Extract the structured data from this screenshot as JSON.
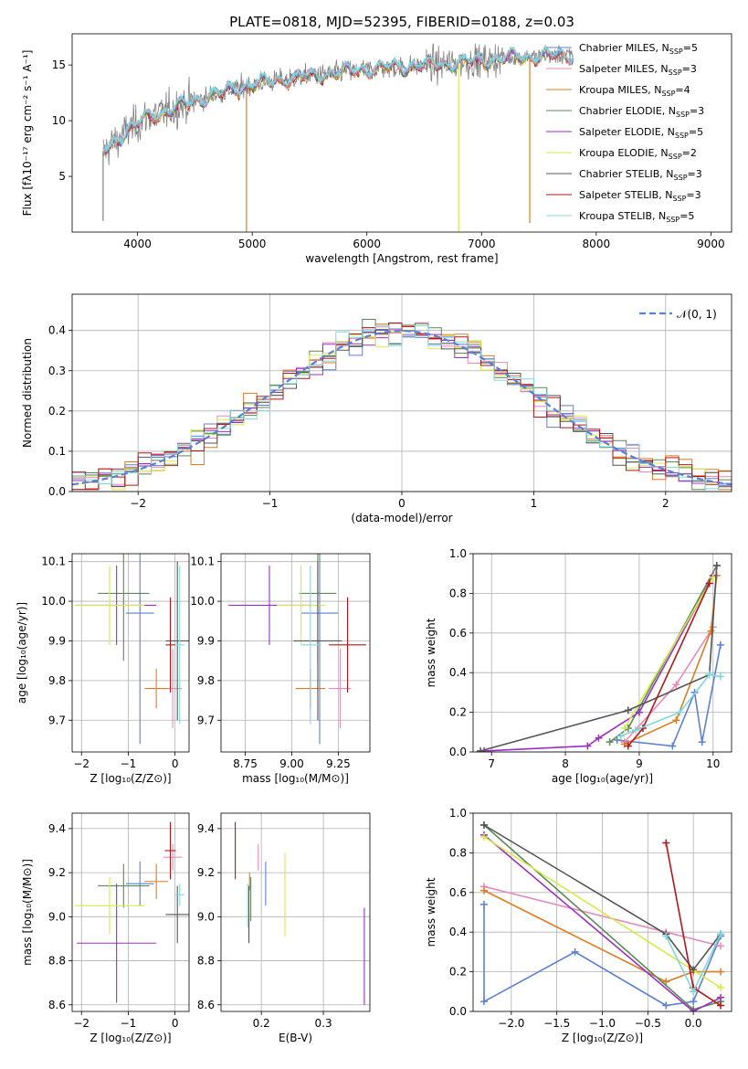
{
  "title": "PLATE=0818, MJD=52395, FIBERID=0188, z=0.03",
  "colors": {
    "Chabrier MILES": "#5b7fd6",
    "Salpeter MILES": "#e889b7",
    "Kroupa MILES": "#e07b24",
    "Chabrier ELODIE": "#5a8a56",
    "Salpeter ELODIE": "#9a2fc1",
    "Kroupa ELODIE": "#d8ea4a",
    "Chabrier STELIB": "#555555",
    "Salpeter STELIB": "#b3161a",
    "Kroupa STELIB": "#7fd7dd"
  },
  "chart_data": [
    {
      "type": "line",
      "name": "spectrum",
      "xlabel": "wavelength [Angstrom, rest frame]",
      "ylabel": "Flux [fλ10⁻¹⁷ erg cm⁻² s⁻¹ A⁻¹]",
      "xlim": [
        3430,
        9180
      ],
      "ylim": [
        0,
        17.8
      ],
      "xticks": [
        4000,
        5000,
        6000,
        7000,
        8000,
        9000
      ],
      "yticks": [
        5,
        10,
        15
      ],
      "legend_position": "top-right",
      "legend": [
        {
          "text": "Chabrier MILES, N",
          "sub": "SSP",
          "suffix": "=5"
        },
        {
          "text": "Salpeter MILES, N",
          "sub": "SSP",
          "suffix": "=3"
        },
        {
          "text": "Kroupa MILES, N",
          "sub": "SSP",
          "suffix": "=4"
        },
        {
          "text": "Chabrier ELODIE, N",
          "sub": "SSP",
          "suffix": "=3"
        },
        {
          "text": "Salpeter ELODIE, N",
          "sub": "SSP",
          "suffix": "=5"
        },
        {
          "text": "Kroupa ELODIE, N",
          "sub": "SSP",
          "suffix": "=2"
        },
        {
          "text": "Chabrier STELIB, N",
          "sub": "SSP",
          "suffix": "=3"
        },
        {
          "text": "Salpeter STELIB, N",
          "sub": "SSP",
          "suffix": "=3"
        },
        {
          "text": "Kroupa STELIB, N",
          "sub": "SSP",
          "suffix": "=5"
        }
      ],
      "continuum": [
        [
          3700,
          7.2
        ],
        [
          3900,
          9.0
        ],
        [
          4100,
          10.4
        ],
        [
          4300,
          11.0
        ],
        [
          4500,
          11.8
        ],
        [
          4700,
          12.4
        ],
        [
          4900,
          13.0
        ],
        [
          5200,
          13.6
        ],
        [
          5500,
          14.0
        ],
        [
          5800,
          14.4
        ],
        [
          6100,
          14.7
        ],
        [
          6400,
          14.9
        ],
        [
          6700,
          15.1
        ],
        [
          7000,
          15.4
        ],
        [
          7300,
          15.7
        ],
        [
          7600,
          15.8
        ],
        [
          7800,
          15.9
        ]
      ],
      "spikes": [
        [
          4950,
          0
        ],
        [
          6800,
          0
        ],
        [
          7420,
          0.8
        ],
        [
          3700,
          1.0
        ]
      ]
    },
    {
      "type": "histogram",
      "name": "residuals",
      "xlabel": "(data-model)/error",
      "ylabel": "Normed distribution",
      "xlim": [
        -2.5,
        2.5
      ],
      "ylim": [
        0,
        0.49
      ],
      "xticks": [
        -2,
        -1,
        0,
        1,
        2
      ],
      "yticks": [
        0.0,
        0.1,
        0.2,
        0.3,
        0.4
      ],
      "bin_width": 0.1,
      "legend": "𝒩(0, 1)",
      "legend_position": "top-right",
      "reference_curve": "normal(0,1)"
    },
    {
      "type": "scatter",
      "name": "age-vs-Z",
      "xlabel": "Z [log₁₀(Z/Z⊙)]",
      "ylabel": "age  [log₁₀(age/yr)]",
      "xlim": [
        -2.2,
        0.3
      ],
      "ylim": [
        9.62,
        10.12
      ],
      "xticks": [
        -2,
        -1,
        0
      ],
      "yticks": [
        9.7,
        9.8,
        9.9,
        10.0,
        10.1
      ],
      "points": [
        {
          "series": "Chabrier MILES",
          "x": -0.75,
          "y": 9.97,
          "xerr": 0.3,
          "yerr": 0.33
        },
        {
          "series": "Salpeter MILES",
          "x": -0.05,
          "y": 9.78,
          "xerr": 0.2,
          "yerr": 0.1
        },
        {
          "series": "Kroupa MILES",
          "x": -0.4,
          "y": 9.78,
          "xerr": 0.25,
          "yerr": 0.05
        },
        {
          "series": "Chabrier ELODIE",
          "x": -1.1,
          "y": 10.02,
          "xerr": 0.55,
          "yerr": 0.17
        },
        {
          "series": "Salpeter ELODIE",
          "x": -1.25,
          "y": 9.99,
          "xerr": 0.85,
          "yerr": 0.1
        },
        {
          "series": "Kroupa ELODIE",
          "x": -1.4,
          "y": 9.99,
          "xerr": 0.75,
          "yerr": 0.1
        },
        {
          "series": "Chabrier STELIB",
          "x": 0.05,
          "y": 9.9,
          "xerr": 0.25,
          "yerr": 0.2
        },
        {
          "series": "Salpeter STELIB",
          "x": -0.1,
          "y": 9.89,
          "xerr": 0.1,
          "yerr": 0.12
        },
        {
          "series": "Kroupa STELIB",
          "x": 0.1,
          "y": 9.89,
          "xerr": 0.1,
          "yerr": 0.2
        }
      ]
    },
    {
      "type": "scatter",
      "name": "age-vs-mass",
      "xlabel": "mass [log₁₀(M/M⊙)]",
      "ylabel": "",
      "xlim": [
        8.62,
        9.42
      ],
      "ylim": [
        9.62,
        10.12
      ],
      "xticks": [
        8.75,
        9.0,
        9.25
      ],
      "yticks": [
        9.7,
        9.8,
        9.9,
        10.0,
        10.1
      ],
      "points": [
        {
          "series": "Chabrier MILES",
          "x": 9.15,
          "y": 9.97,
          "xerr": 0.1,
          "yerr": 0.33
        },
        {
          "series": "Salpeter MILES",
          "x": 9.26,
          "y": 9.78,
          "xerr": 0.06,
          "yerr": 0.1
        },
        {
          "series": "Kroupa MILES",
          "x": 9.1,
          "y": 9.78,
          "xerr": 0.08,
          "yerr": 0.05
        },
        {
          "series": "Chabrier ELODIE",
          "x": 9.14,
          "y": 10.02,
          "xerr": 0.1,
          "yerr": 0.17
        },
        {
          "series": "Salpeter ELODIE",
          "x": 8.88,
          "y": 9.99,
          "xerr": 0.22,
          "yerr": 0.1
        },
        {
          "series": "Kroupa ELODIE",
          "x": 9.05,
          "y": 9.99,
          "xerr": 0.13,
          "yerr": 0.1
        },
        {
          "series": "Chabrier STELIB",
          "x": 9.14,
          "y": 9.9,
          "xerr": 0.13,
          "yerr": 0.2
        },
        {
          "series": "Salpeter STELIB",
          "x": 9.3,
          "y": 9.89,
          "xerr": 0.1,
          "yerr": 0.12
        },
        {
          "series": "Kroupa STELIB",
          "x": 9.1,
          "y": 9.89,
          "xerr": 0.05,
          "yerr": 0.2
        }
      ]
    },
    {
      "type": "line",
      "name": "weight-vs-age",
      "xlabel": "age  [log₁₀(age/yr)]",
      "ylabel": "mass weight",
      "xlim": [
        6.75,
        10.25
      ],
      "ylim": [
        0,
        1.0
      ],
      "xticks": [
        7,
        8,
        9,
        10
      ],
      "yticks": [
        0.0,
        0.2,
        0.4,
        0.6,
        0.8,
        1.0
      ],
      "series": [
        {
          "name": "Chabrier MILES",
          "points": [
            [
              8.7,
              0.06
            ],
            [
              9.45,
              0.03
            ],
            [
              9.75,
              0.3
            ],
            [
              9.85,
              0.05
            ],
            [
              10.1,
              0.54
            ]
          ]
        },
        {
          "name": "Salpeter MILES",
          "points": [
            [
              8.8,
              0.05
            ],
            [
              9.5,
              0.34
            ],
            [
              10.0,
              0.63
            ]
          ]
        },
        {
          "name": "Kroupa MILES",
          "points": [
            [
              8.8,
              0.04
            ],
            [
              9.5,
              0.16
            ],
            [
              9.97,
              0.61
            ],
            [
              10.05,
              0.89
            ]
          ]
        },
        {
          "name": "Chabrier ELODIE",
          "points": [
            [
              8.6,
              0.05
            ],
            [
              8.85,
              0.12
            ],
            [
              10.05,
              0.94
            ]
          ]
        },
        {
          "name": "Salpeter ELODIE",
          "points": [
            [
              6.9,
              0.005
            ],
            [
              8.3,
              0.03
            ],
            [
              8.45,
              0.07
            ],
            [
              9.0,
              0.2
            ],
            [
              10.0,
              0.89
            ]
          ]
        },
        {
          "name": "Kroupa ELODIE",
          "points": [
            [
              8.8,
              0.12
            ],
            [
              10.0,
              0.88
            ]
          ]
        },
        {
          "name": "Chabrier STELIB",
          "points": [
            [
              6.85,
              0.005
            ],
            [
              8.85,
              0.21
            ],
            [
              9.95,
              0.39
            ],
            [
              10.05,
              0.94
            ]
          ]
        },
        {
          "name": "Salpeter STELIB",
          "points": [
            [
              8.85,
              0.03
            ],
            [
              9.05,
              0.12
            ],
            [
              9.95,
              0.85
            ]
          ]
        },
        {
          "name": "Kroupa STELIB",
          "points": [
            [
              8.75,
              0.08
            ],
            [
              8.95,
              0.11
            ],
            [
              9.55,
              0.2
            ],
            [
              9.95,
              0.39
            ],
            [
              10.1,
              0.38
            ]
          ]
        }
      ]
    },
    {
      "type": "scatter",
      "name": "mass-vs-Z",
      "xlabel": "Z [log₁₀(Z/Z⊙)]",
      "ylabel": "mass [log₁₀(M/M⊙)]",
      "xlim": [
        -2.2,
        0.3
      ],
      "ylim": [
        8.57,
        9.47
      ],
      "xticks": [
        -2,
        -1,
        0
      ],
      "yticks": [
        8.6,
        8.8,
        9.0,
        9.2,
        9.4
      ],
      "points": [
        {
          "series": "Chabrier MILES",
          "x": -0.75,
          "y": 9.15,
          "xerr": 0.3,
          "yerr": 0.1
        },
        {
          "series": "Salpeter MILES",
          "x": -0.05,
          "y": 9.27,
          "xerr": 0.2,
          "yerr": 0.06
        },
        {
          "series": "Kroupa MILES",
          "x": -0.4,
          "y": 9.16,
          "xerr": 0.25,
          "yerr": 0.08
        },
        {
          "series": "Chabrier ELODIE",
          "x": -1.1,
          "y": 9.14,
          "xerr": 0.55,
          "yerr": 0.1
        },
        {
          "series": "Salpeter ELODIE",
          "x": -1.25,
          "y": 8.88,
          "xerr": 0.85,
          "yerr": 0.27
        },
        {
          "series": "Kroupa ELODIE",
          "x": -1.4,
          "y": 9.05,
          "xerr": 0.75,
          "yerr": 0.13
        },
        {
          "series": "Chabrier STELIB",
          "x": 0.05,
          "y": 9.01,
          "xerr": 0.25,
          "yerr": 0.13
        },
        {
          "series": "Salpeter STELIB",
          "x": -0.1,
          "y": 9.3,
          "xerr": 0.12,
          "yerr": 0.13
        },
        {
          "series": "Kroupa STELIB",
          "x": 0.1,
          "y": 9.1,
          "xerr": 0.1,
          "yerr": 0.05
        }
      ]
    },
    {
      "type": "scatter",
      "name": "mass-vs-EBV",
      "xlabel": "E(B-V)",
      "ylabel": "",
      "xlim": [
        0.135,
        0.375
      ],
      "ylim": [
        8.57,
        9.47
      ],
      "xticks": [
        0.2,
        0.3
      ],
      "yticks": [
        8.6,
        8.8,
        9.0,
        9.2,
        9.4
      ],
      "points": [
        {
          "series": "Chabrier MILES",
          "x": 0.207,
          "y": 9.15,
          "yerr": 0.1
        },
        {
          "series": "Salpeter MILES",
          "x": 0.195,
          "y": 9.27,
          "yerr": 0.06
        },
        {
          "series": "Kroupa MILES",
          "x": 0.181,
          "y": 9.16,
          "yerr": 0.04
        },
        {
          "series": "Chabrier ELODIE",
          "x": 0.183,
          "y": 9.08,
          "yerr": 0.1
        },
        {
          "series": "Salpeter ELODIE",
          "x": 0.366,
          "y": 8.82,
          "yerr": 0.22
        },
        {
          "series": "Kroupa ELODIE",
          "x": 0.238,
          "y": 9.1,
          "yerr": 0.19
        },
        {
          "series": "Chabrier STELIB",
          "x": 0.18,
          "y": 9.01,
          "yerr": 0.13
        },
        {
          "series": "Salpeter STELIB",
          "x": 0.158,
          "y": 9.3,
          "yerr": 0.13
        },
        {
          "series": "Kroupa STELIB",
          "x": 0.178,
          "y": 9.05,
          "yerr": 0.1
        }
      ]
    },
    {
      "type": "line",
      "name": "weight-vs-Z",
      "xlabel": "Z [log₁₀(Z/Z⊙)]",
      "ylabel": "mass weight",
      "xlim": [
        -2.42,
        0.42
      ],
      "ylim": [
        0,
        1.0
      ],
      "xticks": [
        -2.0,
        -1.5,
        -1.0,
        -0.5,
        0.0
      ],
      "yticks": [
        0.0,
        0.2,
        0.4,
        0.6,
        0.8,
        1.0
      ],
      "series": [
        {
          "name": "Chabrier MILES",
          "points": [
            [
              -2.3,
              0.54
            ],
            [
              -2.3,
              0.05
            ],
            [
              -1.3,
              0.3
            ],
            [
              -0.3,
              0.03
            ],
            [
              0.0,
              0.05
            ],
            [
              0.3,
              0.38
            ]
          ]
        },
        {
          "name": "Salpeter MILES",
          "points": [
            [
              -2.3,
              0.63
            ],
            [
              -0.3,
              0.4
            ],
            [
              0.3,
              0.33
            ]
          ]
        },
        {
          "name": "Kroupa MILES",
          "points": [
            [
              -2.3,
              0.61
            ],
            [
              -0.3,
              0.15
            ],
            [
              0.0,
              0.2
            ],
            [
              0.3,
              0.2
            ]
          ]
        },
        {
          "name": "Chabrier ELODIE",
          "points": [
            [
              -2.3,
              0.94
            ],
            [
              0.0,
              0.01
            ],
            [
              0.3,
              0.05
            ]
          ]
        },
        {
          "name": "Salpeter ELODIE",
          "points": [
            [
              -2.3,
              0.89
            ],
            [
              0.0,
              0.0
            ],
            [
              0.3,
              0.07
            ]
          ]
        },
        {
          "name": "Kroupa ELODIE",
          "points": [
            [
              -2.3,
              0.88
            ],
            [
              0.3,
              0.12
            ]
          ]
        },
        {
          "name": "Chabrier STELIB",
          "points": [
            [
              -2.3,
              0.94
            ],
            [
              -0.3,
              0.39
            ],
            [
              0.0,
              0.21
            ],
            [
              0.3,
              0.39
            ]
          ]
        },
        {
          "name": "Salpeter STELIB",
          "points": [
            [
              -0.3,
              0.85
            ],
            [
              0.0,
              0.12
            ],
            [
              0.3,
              0.03
            ]
          ]
        },
        {
          "name": "Kroupa STELIB",
          "points": [
            [
              -0.3,
              0.38
            ],
            [
              0.0,
              0.1
            ],
            [
              0.3,
              0.39
            ]
          ]
        }
      ]
    }
  ]
}
